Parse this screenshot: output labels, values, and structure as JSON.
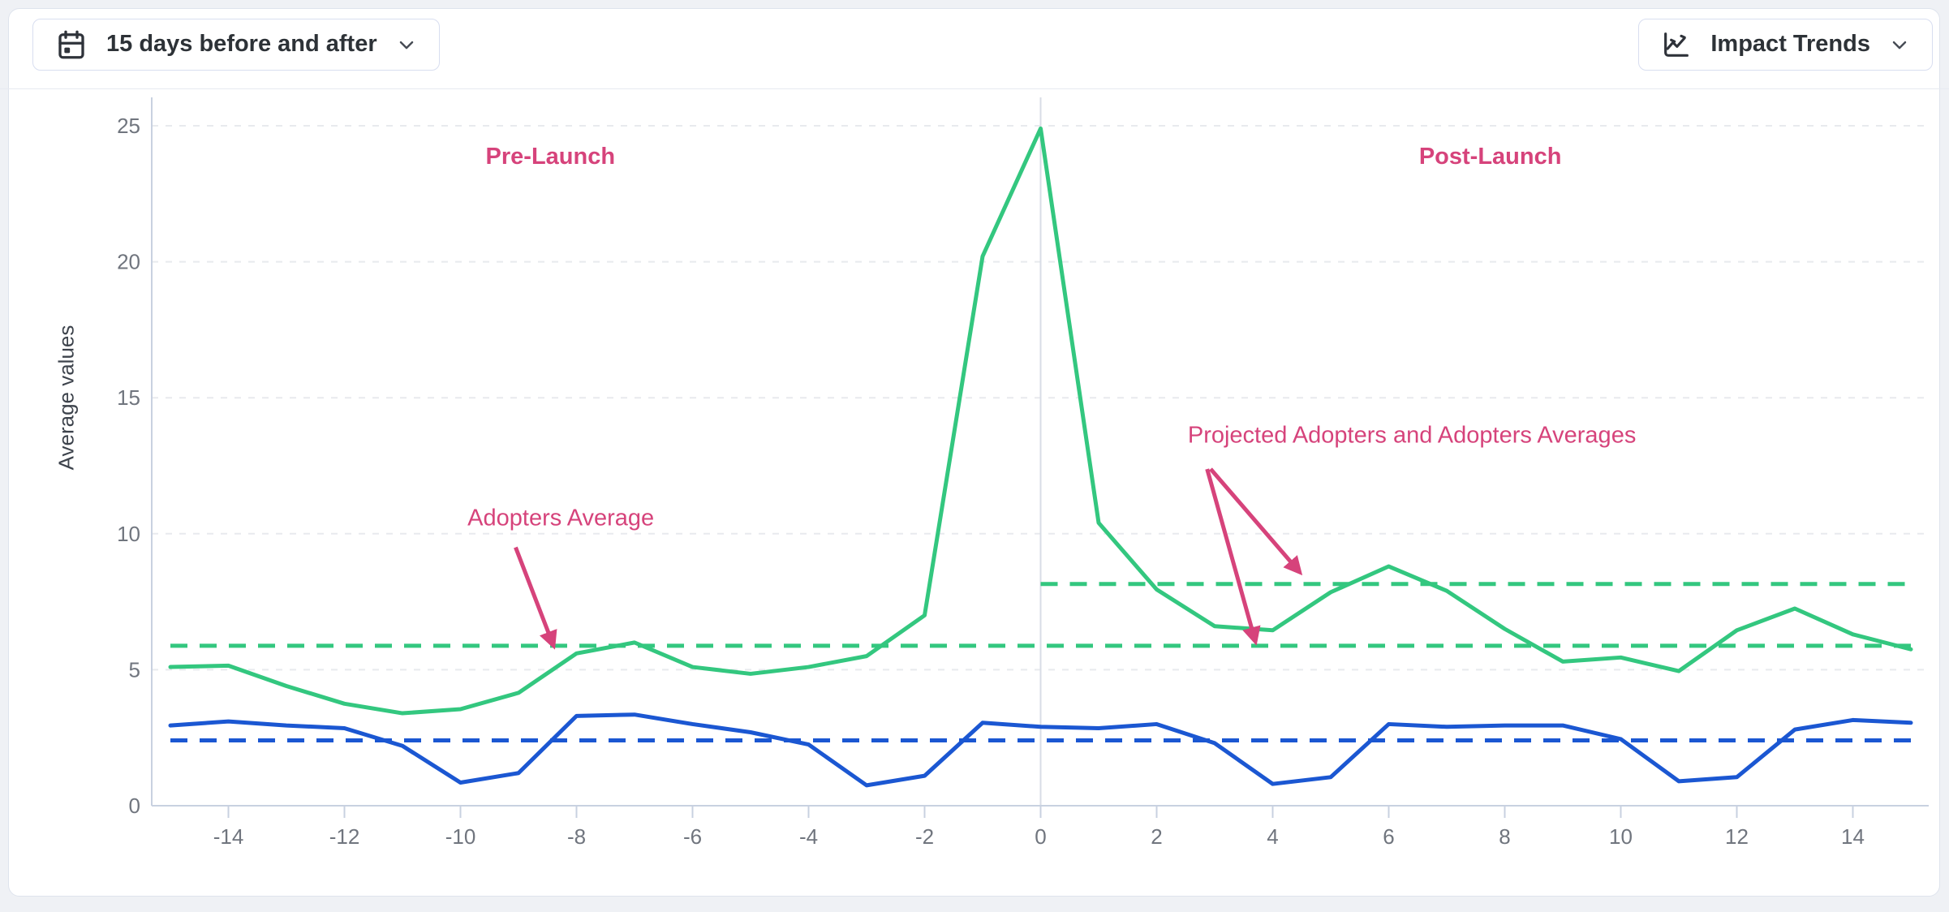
{
  "toolbar": {
    "date_range_button": {
      "label": "15 days before and after",
      "icon": "calendar-event-icon"
    },
    "view_button": {
      "label": "Impact Trends",
      "icon": "chart-line-icon"
    }
  },
  "chart": {
    "ylabel": "Average values"
  },
  "colors": {
    "green": "#33c77f",
    "blue": "#1b57d2",
    "pink": "#d6437b",
    "grid": "#e8eaee",
    "axis": "#c8d1e0",
    "zero_line": "#d8dde6",
    "tick_text": "#70757e"
  },
  "chart_data": {
    "type": "line",
    "title": "",
    "xlabel": "",
    "ylabel": "Average values",
    "xlim": [
      -15,
      15
    ],
    "ylim": [
      0,
      25
    ],
    "x_ticks": [
      -14,
      -12,
      -10,
      -8,
      -6,
      -4,
      -2,
      0,
      2,
      4,
      6,
      8,
      10,
      12,
      14
    ],
    "y_ticks": [
      0,
      5,
      10,
      15,
      20,
      25
    ],
    "grid": "horizontal-dashed",
    "vertical_reference_line_x": 0,
    "x": [
      -15,
      -14,
      -13,
      -12,
      -11,
      -10,
      -9,
      -8,
      -7,
      -6,
      -5,
      -4,
      -3,
      -2,
      -1,
      0,
      1,
      2,
      3,
      4,
      5,
      6,
      7,
      8,
      9,
      10,
      11,
      12,
      13,
      14,
      15
    ],
    "series": [
      {
        "name": "adopters",
        "color_key": "green",
        "style": "solid",
        "values": [
          5.1,
          5.15,
          4.4,
          3.75,
          3.4,
          3.55,
          4.15,
          5.6,
          6.0,
          5.1,
          4.85,
          5.1,
          5.5,
          7.0,
          20.2,
          24.9,
          10.4,
          7.95,
          6.6,
          6.45,
          7.85,
          8.8,
          7.9,
          6.5,
          5.3,
          5.45,
          4.95,
          6.45,
          7.25,
          6.3,
          5.75
        ]
      },
      {
        "name": "blue_series",
        "color_key": "blue",
        "style": "solid",
        "values": [
          2.95,
          3.1,
          2.95,
          2.85,
          2.2,
          0.85,
          1.2,
          3.3,
          3.35,
          3.0,
          2.7,
          2.25,
          0.75,
          1.1,
          3.05,
          2.9,
          2.85,
          3.0,
          2.3,
          0.8,
          1.05,
          3.0,
          2.9,
          2.95,
          2.95,
          2.45,
          0.9,
          1.05,
          2.8,
          3.15,
          3.05
        ]
      }
    ],
    "average_lines": [
      {
        "color_key": "green",
        "value": 5.88,
        "x_from": -15,
        "x_to": 15
      },
      {
        "color_key": "green",
        "value": 8.15,
        "x_from": 0,
        "x_to": 15
      },
      {
        "color_key": "blue",
        "value": 2.4,
        "x_from": -15,
        "x_to": 15
      }
    ],
    "annotations": {
      "pre_label": {
        "text": "Pre-Launch",
        "x": -8.45,
        "y": 23.6,
        "bold": true
      },
      "post_label": {
        "text": "Post-Launch",
        "x": 7.75,
        "y": 23.6,
        "bold": true
      },
      "adopters_avg": {
        "text": "Adopters Average",
        "x": -8.27,
        "y": 10.3,
        "bold": false,
        "arrows": [
          [
            -9.05,
            9.5,
            -8.4,
            5.9
          ]
        ]
      },
      "projected_avgs": {
        "text": "Projected Adopters and Adopters Averages",
        "x": 6.4,
        "y": 13.35,
        "bold": false,
        "arrows": [
          [
            2.93,
            12.38,
            4.46,
            8.6
          ],
          [
            2.87,
            12.38,
            3.7,
            6.05
          ]
        ]
      }
    }
  }
}
